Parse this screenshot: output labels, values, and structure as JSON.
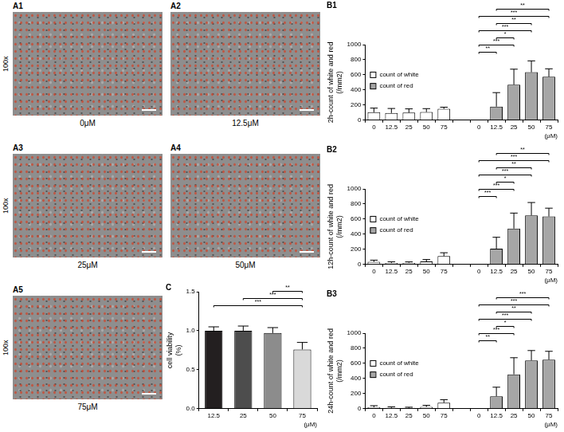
{
  "magnification": "100x",
  "image_panels": [
    {
      "panel": "A1",
      "caption": "0μM"
    },
    {
      "panel": "A2",
      "caption": "12.5μM"
    },
    {
      "panel": "A3",
      "caption": "25μM"
    },
    {
      "panel": "A4",
      "caption": "50μM"
    },
    {
      "panel": "A5",
      "caption": "75μM"
    }
  ],
  "chart_data": [
    {
      "panel": "B1",
      "type": "bar",
      "y_label": "2h-count of white and red (/mm2)",
      "x_label": "(μM)",
      "categories": [
        "0",
        "12.5",
        "25",
        "50",
        "75",
        null,
        "0",
        "12.5",
        "25",
        "50",
        "75"
      ],
      "series": [
        {
          "name": "count of white",
          "color": "#ffffff",
          "values": [
            105,
            95,
            100,
            108,
            150,
            null,
            null,
            null,
            null,
            null,
            null
          ],
          "errors": [
            55,
            60,
            50,
            45,
            22,
            null,
            null,
            null,
            null,
            null,
            null
          ]
        },
        {
          "name": "count of red",
          "color": "#a6a6a6",
          "values": [
            null,
            null,
            null,
            null,
            null,
            null,
            0,
            180,
            470,
            635,
            575
          ],
          "errors": [
            null,
            null,
            null,
            null,
            null,
            null,
            0,
            185,
            205,
            150,
            105
          ]
        }
      ],
      "ylim": [
        0,
        1000
      ],
      "yticks": [
        0,
        200,
        400,
        600,
        800,
        1000
      ],
      "grid": false,
      "legend": "left",
      "annotations": [
        {
          "from": 6,
          "to": 7,
          "label": "**"
        },
        {
          "from": 6,
          "to": 8,
          "label": "***"
        },
        {
          "from": 7,
          "to": 8,
          "label": "*"
        },
        {
          "from": 6,
          "to": 9,
          "label": "***"
        },
        {
          "from": 7,
          "to": 9,
          "label": "**"
        },
        {
          "from": 6,
          "to": 10,
          "label": "***"
        },
        {
          "from": 7,
          "to": 10,
          "label": "**"
        }
      ]
    },
    {
      "panel": "B2",
      "type": "bar",
      "y_label": "12h-count of white and red (/mm2)",
      "x_label": "(μM)",
      "categories": [
        "0",
        "12.5",
        "25",
        "50",
        "75",
        null,
        "0",
        "12.5",
        "25",
        "50",
        "75"
      ],
      "series": [
        {
          "name": "count of white",
          "color": "#ffffff",
          "values": [
            35,
            20,
            22,
            40,
            110,
            null,
            null,
            null,
            null,
            null,
            null
          ],
          "errors": [
            22,
            15,
            12,
            25,
            45,
            null,
            null,
            null,
            null,
            null,
            null
          ]
        },
        {
          "name": "count of red",
          "color": "#a6a6a6",
          "values": [
            null,
            null,
            null,
            null,
            null,
            null,
            0,
            210,
            475,
            650,
            635
          ],
          "errors": [
            null,
            null,
            null,
            null,
            null,
            null,
            0,
            150,
            205,
            170,
            110
          ]
        }
      ],
      "ylim": [
        0,
        1000
      ],
      "yticks": [
        0,
        200,
        400,
        600,
        800,
        1000
      ],
      "grid": false,
      "legend": "left",
      "annotations": [
        {
          "from": 6,
          "to": 7,
          "label": "***"
        },
        {
          "from": 6,
          "to": 8,
          "label": "***"
        },
        {
          "from": 7,
          "to": 8,
          "label": "*"
        },
        {
          "from": 6,
          "to": 9,
          "label": "***"
        },
        {
          "from": 7,
          "to": 9,
          "label": "**"
        },
        {
          "from": 6,
          "to": 10,
          "label": "***"
        },
        {
          "from": 7,
          "to": 10,
          "label": "**"
        }
      ]
    },
    {
      "panel": "B3",
      "type": "bar",
      "y_label": "24h-count of white and red (/mm2)",
      "x_label": "(μM)",
      "categories": [
        "0",
        "12.5",
        "25",
        "50",
        "75",
        null,
        "0",
        "12.5",
        "25",
        "50",
        "75"
      ],
      "series": [
        {
          "name": "count of white",
          "color": "#ffffff",
          "values": [
            20,
            10,
            10,
            25,
            80,
            null,
            null,
            null,
            null,
            null,
            null
          ],
          "errors": [
            20,
            15,
            10,
            20,
            40,
            null,
            null,
            null,
            null,
            null,
            null
          ]
        },
        {
          "name": "count of red",
          "color": "#a6a6a6",
          "values": [
            null,
            null,
            null,
            null,
            null,
            null,
            0,
            165,
            455,
            640,
            650
          ],
          "errors": [
            null,
            null,
            null,
            null,
            null,
            null,
            0,
            120,
            220,
            130,
            110
          ]
        }
      ],
      "ylim": [
        0,
        1000
      ],
      "yticks": [
        0,
        200,
        400,
        600,
        800,
        1000
      ],
      "grid": false,
      "legend": "left",
      "annotations": [
        {
          "from": 6,
          "to": 7,
          "label": "**"
        },
        {
          "from": 6,
          "to": 8,
          "label": "***"
        },
        {
          "from": 7,
          "to": 8,
          "label": "*"
        },
        {
          "from": 6,
          "to": 9,
          "label": "***"
        },
        {
          "from": 7,
          "to": 9,
          "label": "**"
        },
        {
          "from": 6,
          "to": 10,
          "label": "***"
        },
        {
          "from": 7,
          "to": 10,
          "label": "***"
        }
      ]
    },
    {
      "panel": "C",
      "type": "bar",
      "y_label": "cell viability (%)",
      "x_label": "(μM)",
      "categories": [
        "12.5",
        "25",
        "50",
        "75"
      ],
      "values": [
        1.0,
        1.0,
        0.97,
        0.76
      ],
      "errors": [
        0.05,
        0.06,
        0.07,
        0.09
      ],
      "colors": [
        "#231f20",
        "#4d4d4d",
        "#8c8c8c",
        "#d9d9d9"
      ],
      "ylim": [
        0,
        1.5
      ],
      "yticks": [
        {
          "value": 0,
          "label": "0.0"
        },
        {
          "value": 0.5,
          "label": "0.5"
        },
        {
          "value": 1,
          "label": "1.0"
        },
        {
          "value": 1.5,
          "label": "1.5"
        }
      ],
      "grid": false,
      "annotations": [
        {
          "from": 0,
          "to": 3,
          "label": "***"
        },
        {
          "from": 1,
          "to": 3,
          "label": "***"
        },
        {
          "from": 2,
          "to": 3,
          "label": "**"
        }
      ]
    }
  ]
}
